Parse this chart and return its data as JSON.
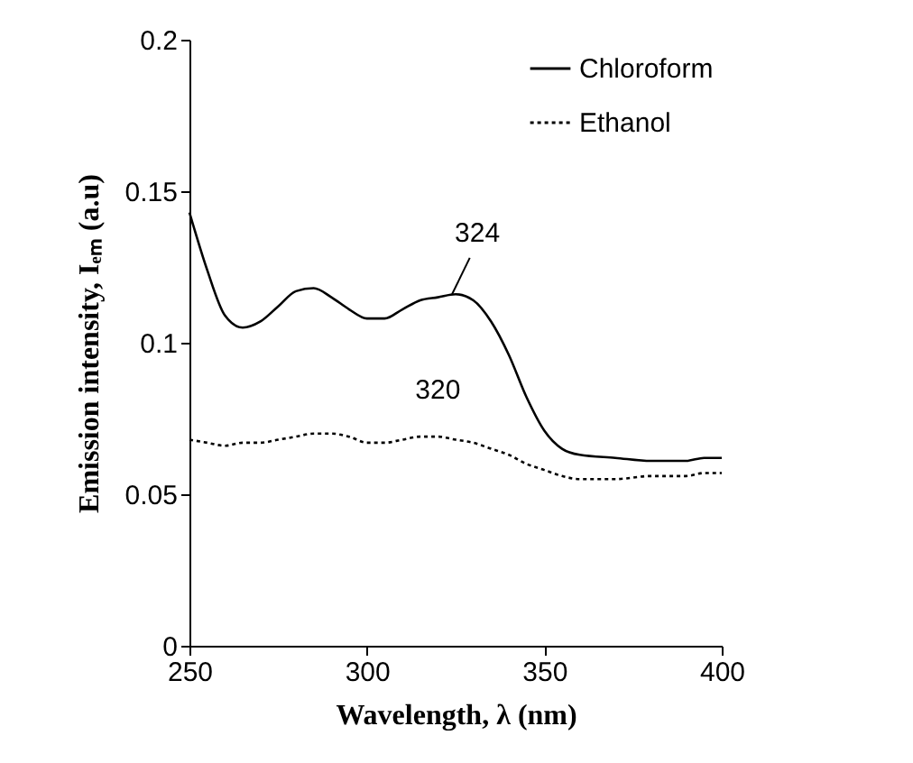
{
  "chart_data": {
    "type": "line",
    "xlabel": "Wavelength, λ (nm)",
    "ylabel": "Emission intensity, Iₑₘ (a.u)",
    "xlim": [
      250,
      400
    ],
    "xticks": [
      250,
      300,
      350,
      400
    ],
    "ylim": [
      0,
      0.2
    ],
    "yticks": [
      0,
      0.05,
      0.1,
      0.15,
      0.2
    ],
    "x": [
      250,
      255,
      260,
      265,
      270,
      275,
      280,
      285,
      290,
      295,
      300,
      305,
      310,
      315,
      320,
      325,
      330,
      335,
      340,
      345,
      350,
      355,
      360,
      370,
      380,
      390,
      395,
      400
    ],
    "series": [
      {
        "name": "Chloroform",
        "color": "#000000",
        "line_style": "solid",
        "values": [
          0.143,
          0.124,
          0.109,
          0.105,
          0.107,
          0.112,
          0.117,
          0.118,
          0.115,
          0.111,
          0.108,
          0.108,
          0.111,
          0.114,
          0.115,
          0.116,
          0.114,
          0.107,
          0.096,
          0.082,
          0.071,
          0.065,
          0.063,
          0.062,
          0.061,
          0.061,
          0.062,
          0.062
        ]
      },
      {
        "name": "Ethanol",
        "color": "#000000",
        "line_style": "dotted",
        "values": [
          0.068,
          0.067,
          0.066,
          0.067,
          0.067,
          0.068,
          0.069,
          0.07,
          0.07,
          0.069,
          0.067,
          0.067,
          0.068,
          0.069,
          0.069,
          0.068,
          0.067,
          0.065,
          0.063,
          0.06,
          0.058,
          0.056,
          0.055,
          0.055,
          0.056,
          0.056,
          0.057,
          0.057
        ]
      }
    ],
    "annotations": [
      {
        "text": "324",
        "x": 324,
        "y": 0.116
      },
      {
        "text": "320",
        "x": 320,
        "y": 0.069
      }
    ],
    "legend": "top right",
    "grid": false
  }
}
